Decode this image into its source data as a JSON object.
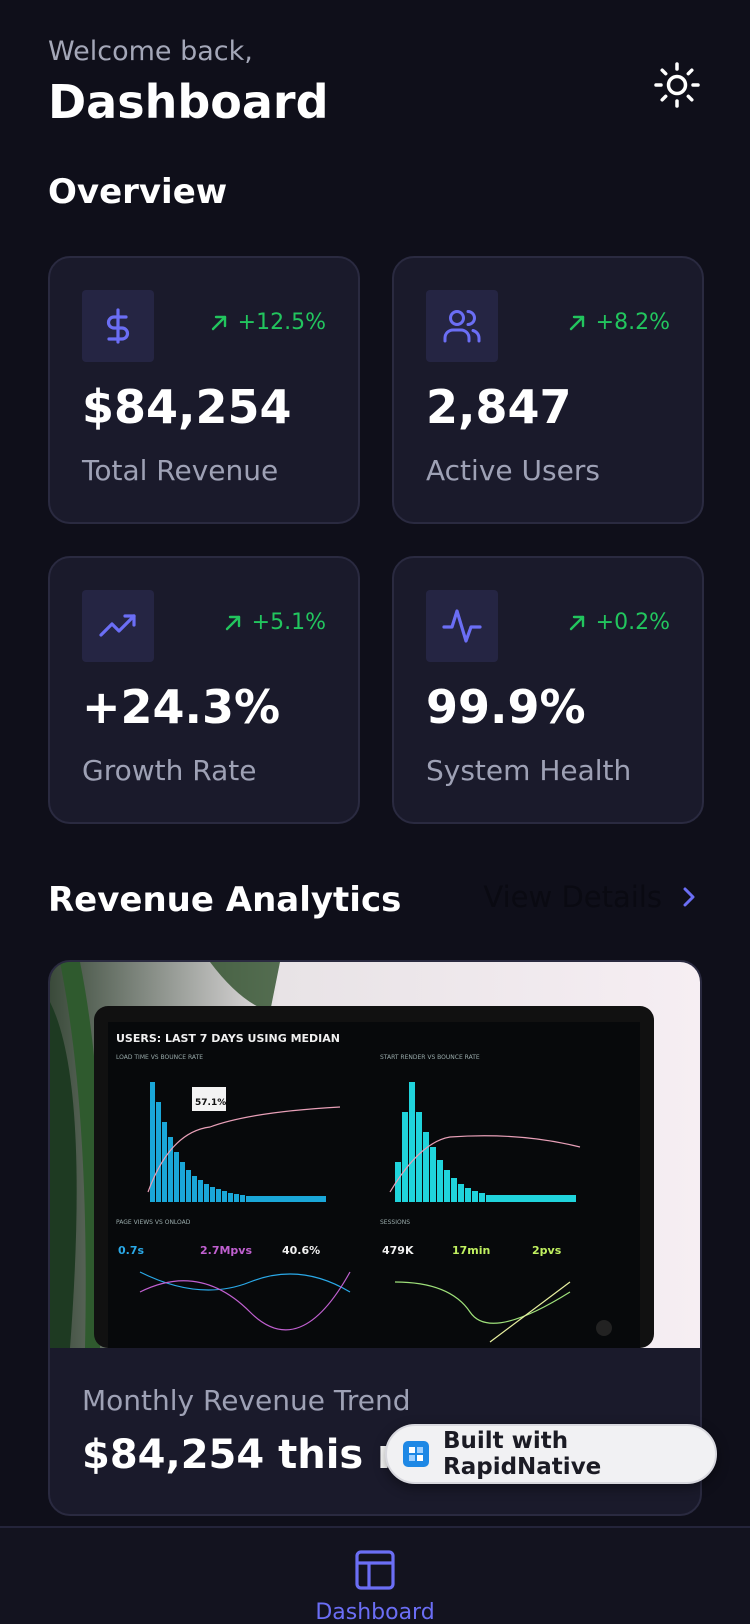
{
  "header": {
    "welcome": "Welcome back,",
    "title": "Dashboard",
    "theme_icon": "sun-icon"
  },
  "overview": {
    "title": "Overview",
    "cards": [
      {
        "icon": "dollar-icon",
        "change": "+12.5%",
        "value": "$84,254",
        "label": "Total Revenue"
      },
      {
        "icon": "users-icon",
        "change": "+8.2%",
        "value": "2,847",
        "label": "Active Users"
      },
      {
        "icon": "trending-up-icon",
        "change": "+5.1%",
        "value": "+24.3%",
        "label": "Growth Rate"
      },
      {
        "icon": "activity-icon",
        "change": "+0.2%",
        "value": "99.9%",
        "label": "System Health"
      }
    ]
  },
  "analytics": {
    "title": "Revenue Analytics",
    "view_details": "View Details",
    "trend_label": "Monthly Revenue Trend",
    "trend_value": "$84,254 this month",
    "image": {
      "heading": "USERS: LAST 7 DAYS USING MEDIAN",
      "panels": [
        "LOAD TIME VS BOUNCE RATE",
        "START RENDER VS BOUNCE RATE",
        "PAGE VIEWS VS ONLOAD",
        "SESSIONS"
      ],
      "metrics": [
        "0.7s",
        "2.7Mpvs",
        "40.6%",
        "479K",
        "17min",
        "2pvs"
      ]
    }
  },
  "badge": {
    "text": "Built with RapidNative"
  },
  "nav": {
    "dashboard_label": "Dashboard"
  },
  "colors": {
    "accent": "#6b6ef5",
    "positive": "#22c55e",
    "background": "#0f0f1a",
    "card": "#1a1a2b"
  }
}
